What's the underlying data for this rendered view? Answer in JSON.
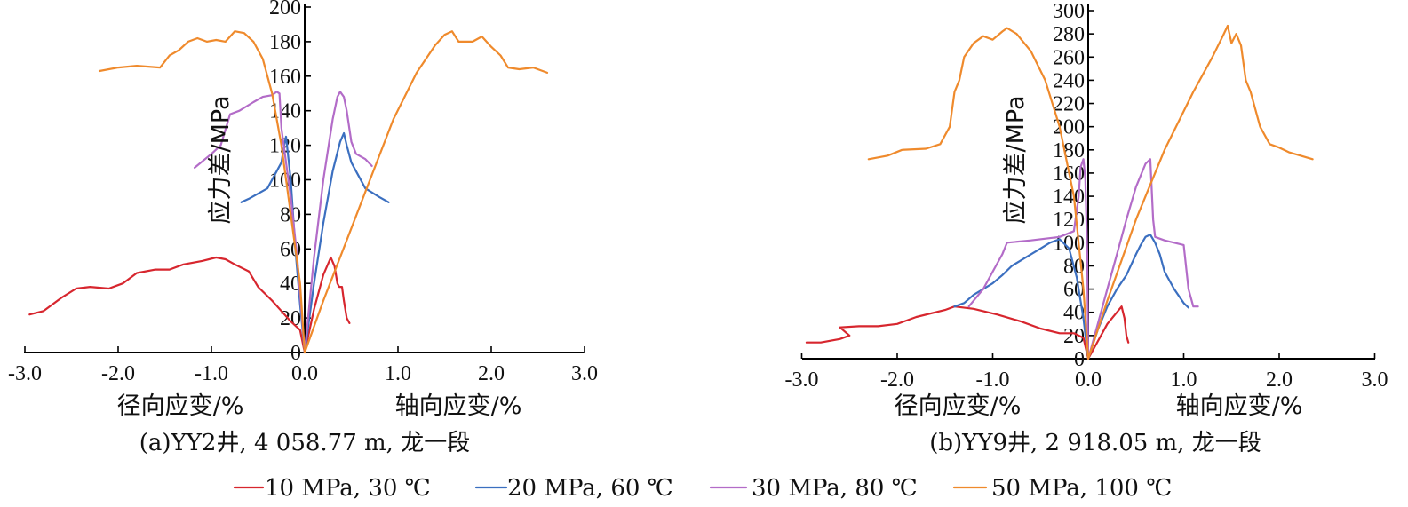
{
  "legend": {
    "placement": "bottom",
    "items": [
      {
        "label": "10 MPa, 30 ℃",
        "color": "#d7262e"
      },
      {
        "label": "20 MPa, 60 ℃",
        "color": "#3b6fc0"
      },
      {
        "label": "30 MPa, 80 ℃",
        "color": "#b36cc8"
      },
      {
        "label": "50 MPa, 100 ℃",
        "color": "#ef8a2c"
      }
    ]
  },
  "chart_data": [
    {
      "type": "line",
      "caption": "(a)YY2井, 4 058.77 m, 龙一段",
      "ylabel": "应力差/MPa",
      "xlabel_left": "径向应变/%",
      "xlabel_right": "轴向应变/%",
      "xlim": [
        -3.0,
        3.0
      ],
      "ylim": [
        0,
        200
      ],
      "xticks": [
        -3.0,
        -2.0,
        -1.0,
        0.0,
        1.0,
        2.0,
        3.0
      ],
      "xtick_labels": [
        "-3.0",
        "-2.0",
        "-1.0",
        "0.0",
        "1.0",
        "2.0",
        "3.0"
      ],
      "yticks": [
        0,
        20,
        40,
        60,
        80,
        100,
        120,
        140,
        160,
        180,
        200
      ],
      "ytick_labels": [
        "0",
        "20",
        "40",
        "60",
        "80",
        "100",
        "120",
        "140",
        "160",
        "180",
        "200"
      ],
      "series": [
        {
          "name": "10 MPa, 30 ℃",
          "color": "#d7262e",
          "points": [
            [
              -2.95,
              22
            ],
            [
              -2.8,
              24
            ],
            [
              -2.6,
              32
            ],
            [
              -2.45,
              37
            ],
            [
              -2.3,
              38
            ],
            [
              -2.1,
              37
            ],
            [
              -1.95,
              40
            ],
            [
              -1.8,
              46
            ],
            [
              -1.6,
              48
            ],
            [
              -1.45,
              48
            ],
            [
              -1.3,
              51
            ],
            [
              -1.1,
              53
            ],
            [
              -0.95,
              55
            ],
            [
              -0.85,
              54
            ],
            [
              -0.75,
              51
            ],
            [
              -0.6,
              47
            ],
            [
              -0.5,
              38
            ],
            [
              -0.35,
              30
            ],
            [
              -0.25,
              24
            ],
            [
              -0.15,
              18
            ],
            [
              -0.05,
              13
            ],
            [
              0.0,
              0
            ],
            [
              0.1,
              25
            ],
            [
              0.2,
              45
            ],
            [
              0.28,
              55
            ],
            [
              0.32,
              50
            ],
            [
              0.35,
              40
            ],
            [
              0.37,
              38
            ],
            [
              0.4,
              38
            ],
            [
              0.42,
              30
            ],
            [
              0.45,
              20
            ],
            [
              0.48,
              17
            ]
          ]
        },
        {
          "name": "20 MPa, 60 ℃",
          "color": "#3b6fc0",
          "points": [
            [
              -0.68,
              87
            ],
            [
              -0.6,
              89
            ],
            [
              -0.4,
              95
            ],
            [
              -0.3,
              105
            ],
            [
              -0.25,
              110
            ],
            [
              -0.22,
              120
            ],
            [
              -0.2,
              125
            ],
            [
              -0.15,
              100
            ],
            [
              -0.1,
              60
            ],
            [
              -0.05,
              28
            ],
            [
              0.0,
              0
            ],
            [
              0.1,
              40
            ],
            [
              0.2,
              75
            ],
            [
              0.3,
              105
            ],
            [
              0.38,
              122
            ],
            [
              0.42,
              127
            ],
            [
              0.45,
              120
            ],
            [
              0.5,
              110
            ],
            [
              0.55,
              105
            ],
            [
              0.65,
              95
            ],
            [
              0.8,
              90
            ],
            [
              0.9,
              87
            ]
          ]
        },
        {
          "name": "30 MPa, 80 ℃",
          "color": "#b36cc8",
          "points": [
            [
              -1.18,
              107
            ],
            [
              -1.0,
              115
            ],
            [
              -0.9,
              120
            ],
            [
              -0.8,
              138
            ],
            [
              -0.7,
              140
            ],
            [
              -0.55,
              145
            ],
            [
              -0.45,
              148
            ],
            [
              -0.35,
              149
            ],
            [
              -0.3,
              151
            ],
            [
              -0.27,
              150
            ],
            [
              -0.25,
              130
            ],
            [
              -0.2,
              110
            ],
            [
              -0.15,
              90
            ],
            [
              -0.08,
              55
            ],
            [
              0.0,
              0
            ],
            [
              0.1,
              55
            ],
            [
              0.2,
              100
            ],
            [
              0.3,
              135
            ],
            [
              0.35,
              148
            ],
            [
              0.38,
              151
            ],
            [
              0.42,
              148
            ],
            [
              0.45,
              140
            ],
            [
              0.5,
              122
            ],
            [
              0.55,
              115
            ],
            [
              0.65,
              112
            ],
            [
              0.72,
              108
            ]
          ]
        },
        {
          "name": "50 MPa, 100 ℃",
          "color": "#ef8a2c",
          "points": [
            [
              -2.2,
              163
            ],
            [
              -2.0,
              165
            ],
            [
              -1.8,
              166
            ],
            [
              -1.55,
              165
            ],
            [
              -1.45,
              172
            ],
            [
              -1.35,
              175
            ],
            [
              -1.25,
              180
            ],
            [
              -1.15,
              182
            ],
            [
              -1.05,
              180
            ],
            [
              -0.95,
              181
            ],
            [
              -0.85,
              180
            ],
            [
              -0.8,
              183
            ],
            [
              -0.75,
              186
            ],
            [
              -0.65,
              185
            ],
            [
              -0.55,
              180
            ],
            [
              -0.45,
              170
            ],
            [
              -0.35,
              150
            ],
            [
              -0.25,
              120
            ],
            [
              -0.15,
              80
            ],
            [
              -0.05,
              40
            ],
            [
              0.0,
              0
            ],
            [
              0.2,
              30
            ],
            [
              0.45,
              65
            ],
            [
              0.7,
              100
            ],
            [
              0.95,
              135
            ],
            [
              1.2,
              162
            ],
            [
              1.4,
              178
            ],
            [
              1.5,
              184
            ],
            [
              1.58,
              186
            ],
            [
              1.65,
              180
            ],
            [
              1.8,
              180
            ],
            [
              1.9,
              183
            ],
            [
              2.0,
              177
            ],
            [
              2.1,
              172
            ],
            [
              2.18,
              165
            ],
            [
              2.3,
              164
            ],
            [
              2.45,
              165
            ],
            [
              2.6,
              162
            ]
          ]
        }
      ]
    },
    {
      "type": "line",
      "caption": "(b)YY9井, 2 918.05 m, 龙一段",
      "ylabel": "应力差/MPa",
      "xlabel_left": "径向应变/%",
      "xlabel_right": "轴向应变/%",
      "xlim": [
        -3.0,
        3.0
      ],
      "ylim": [
        0,
        300
      ],
      "xticks": [
        -3.0,
        -2.0,
        -1.0,
        0.0,
        1.0,
        2.0,
        3.0
      ],
      "xtick_labels": [
        "-3.0",
        "-2.0",
        "-1.0",
        "0.0",
        "1.0",
        "2.0",
        "3.0"
      ],
      "yticks": [
        0,
        20,
        40,
        60,
        80,
        100,
        120,
        140,
        160,
        180,
        200,
        220,
        240,
        260,
        280,
        300
      ],
      "ytick_labels": [
        "0",
        "20",
        "40",
        "60",
        "80",
        "100",
        "120",
        "140",
        "160",
        "180",
        "200",
        "220",
        "240",
        "260",
        "280",
        "300"
      ],
      "series": [
        {
          "name": "10 MPa, 30 ℃",
          "color": "#d7262e",
          "points": [
            [
              -2.95,
              14
            ],
            [
              -2.8,
              14
            ],
            [
              -2.6,
              17
            ],
            [
              -2.5,
              20
            ],
            [
              -2.6,
              27
            ],
            [
              -2.4,
              28
            ],
            [
              -2.2,
              28
            ],
            [
              -2.0,
              30
            ],
            [
              -1.8,
              36
            ],
            [
              -1.5,
              42
            ],
            [
              -1.4,
              45
            ],
            [
              -1.2,
              43
            ],
            [
              -0.95,
              38
            ],
            [
              -0.7,
              32
            ],
            [
              -0.5,
              26
            ],
            [
              -0.3,
              22
            ],
            [
              -0.15,
              22
            ],
            [
              -0.05,
              18
            ],
            [
              0.0,
              0
            ],
            [
              0.1,
              15
            ],
            [
              0.2,
              30
            ],
            [
              0.3,
              40
            ],
            [
              0.35,
              45
            ],
            [
              0.38,
              35
            ],
            [
              0.4,
              20
            ],
            [
              0.42,
              14
            ]
          ]
        },
        {
          "name": "20 MPa, 60 ℃",
          "color": "#3b6fc0",
          "points": [
            [
              -1.4,
              45
            ],
            [
              -1.3,
              48
            ],
            [
              -1.2,
              55
            ],
            [
              -1.1,
              60
            ],
            [
              -1.0,
              65
            ],
            [
              -0.9,
              72
            ],
            [
              -0.8,
              80
            ],
            [
              -0.7,
              85
            ],
            [
              -0.6,
              90
            ],
            [
              -0.5,
              95
            ],
            [
              -0.4,
              100
            ],
            [
              -0.3,
              103
            ],
            [
              -0.2,
              95
            ],
            [
              -0.12,
              70
            ],
            [
              -0.05,
              35
            ],
            [
              0.0,
              0
            ],
            [
              0.1,
              25
            ],
            [
              0.2,
              45
            ],
            [
              0.3,
              60
            ],
            [
              0.4,
              72
            ],
            [
              0.5,
              90
            ],
            [
              0.55,
              98
            ],
            [
              0.6,
              105
            ],
            [
              0.65,
              107
            ],
            [
              0.7,
              100
            ],
            [
              0.75,
              90
            ],
            [
              0.8,
              75
            ],
            [
              0.9,
              60
            ],
            [
              1.0,
              48
            ],
            [
              1.05,
              44
            ]
          ]
        },
        {
          "name": "30 MPa, 80 ℃",
          "color": "#b36cc8",
          "points": [
            [
              -1.25,
              45
            ],
            [
              -1.1,
              60
            ],
            [
              -1.0,
              75
            ],
            [
              -0.9,
              90
            ],
            [
              -0.85,
              100
            ],
            [
              -0.6,
              102
            ],
            [
              -0.3,
              105
            ],
            [
              -0.15,
              110
            ],
            [
              -0.1,
              140
            ],
            [
              -0.08,
              165
            ],
            [
              -0.05,
              172
            ],
            [
              -0.03,
              155
            ],
            [
              -0.01,
              90
            ],
            [
              0.0,
              0
            ],
            [
              0.1,
              30
            ],
            [
              0.2,
              60
            ],
            [
              0.3,
              90
            ],
            [
              0.4,
              120
            ],
            [
              0.5,
              148
            ],
            [
              0.6,
              168
            ],
            [
              0.65,
              172
            ],
            [
              0.68,
              120
            ],
            [
              0.7,
              105
            ],
            [
              0.8,
              102
            ],
            [
              0.9,
              100
            ],
            [
              1.0,
              98
            ],
            [
              1.05,
              60
            ],
            [
              1.1,
              45
            ],
            [
              1.15,
              45
            ]
          ]
        },
        {
          "name": "50 MPa, 100 ℃",
          "color": "#ef8a2c",
          "points": [
            [
              -2.3,
              172
            ],
            [
              -2.1,
              175
            ],
            [
              -1.95,
              180
            ],
            [
              -1.7,
              181
            ],
            [
              -1.55,
              185
            ],
            [
              -1.45,
              200
            ],
            [
              -1.4,
              230
            ],
            [
              -1.35,
              240
            ],
            [
              -1.3,
              260
            ],
            [
              -1.2,
              272
            ],
            [
              -1.1,
              278
            ],
            [
              -1.0,
              275
            ],
            [
              -0.9,
              282
            ],
            [
              -0.85,
              285
            ],
            [
              -0.75,
              280
            ],
            [
              -0.6,
              265
            ],
            [
              -0.45,
              240
            ],
            [
              -0.3,
              200
            ],
            [
              -0.15,
              140
            ],
            [
              -0.05,
              60
            ],
            [
              0.0,
              0
            ],
            [
              0.2,
              50
            ],
            [
              0.5,
              120
            ],
            [
              0.8,
              180
            ],
            [
              1.1,
              230
            ],
            [
              1.3,
              260
            ],
            [
              1.42,
              280
            ],
            [
              1.46,
              287
            ],
            [
              1.5,
              272
            ],
            [
              1.55,
              280
            ],
            [
              1.6,
              270
            ],
            [
              1.65,
              240
            ],
            [
              1.7,
              230
            ],
            [
              1.8,
              200
            ],
            [
              1.9,
              185
            ],
            [
              2.0,
              182
            ],
            [
              2.1,
              178
            ],
            [
              2.35,
              172
            ]
          ]
        }
      ]
    }
  ]
}
